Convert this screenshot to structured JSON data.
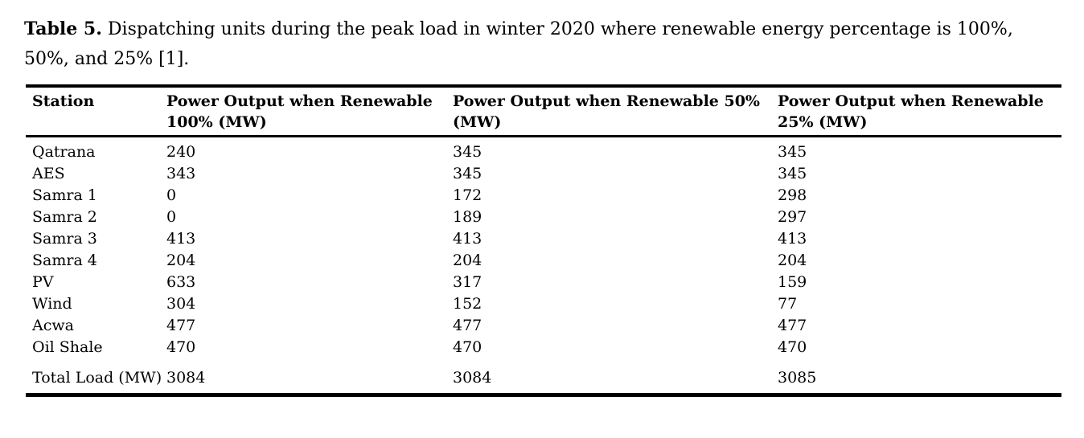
{
  "caption": {
    "label": "Table 5.",
    "text": "Dispatching units during the peak load in winter 2020 where renewable energy percentage is 100%, 50%, and 25% [1]."
  },
  "table": {
    "columns": [
      "Station",
      "Power Output when Renewable 100% (MW)",
      "Power Output when Renewable 50% (MW)",
      "Power Output when Renewable 25% (MW)"
    ],
    "rows": [
      [
        "Qatrana",
        "240",
        "345",
        "345"
      ],
      [
        "AES",
        "343",
        "345",
        "345"
      ],
      [
        "Samra 1",
        "0",
        "172",
        "298"
      ],
      [
        "Samra 2",
        "0",
        "189",
        "297"
      ],
      [
        "Samra 3",
        "413",
        "413",
        "413"
      ],
      [
        "Samra 4",
        "204",
        "204",
        "204"
      ],
      [
        "PV",
        "633",
        "317",
        "159"
      ],
      [
        "Wind",
        "304",
        "152",
        "77"
      ],
      [
        "Acwa",
        "477",
        "477",
        "477"
      ],
      [
        "Oil Shale",
        "470",
        "470",
        "470"
      ],
      [
        "Total Load (MW)",
        "3084",
        "3084",
        "3085"
      ]
    ]
  },
  "colors": {
    "text": "#000000",
    "background": "#ffffff",
    "rule": "#000000"
  }
}
